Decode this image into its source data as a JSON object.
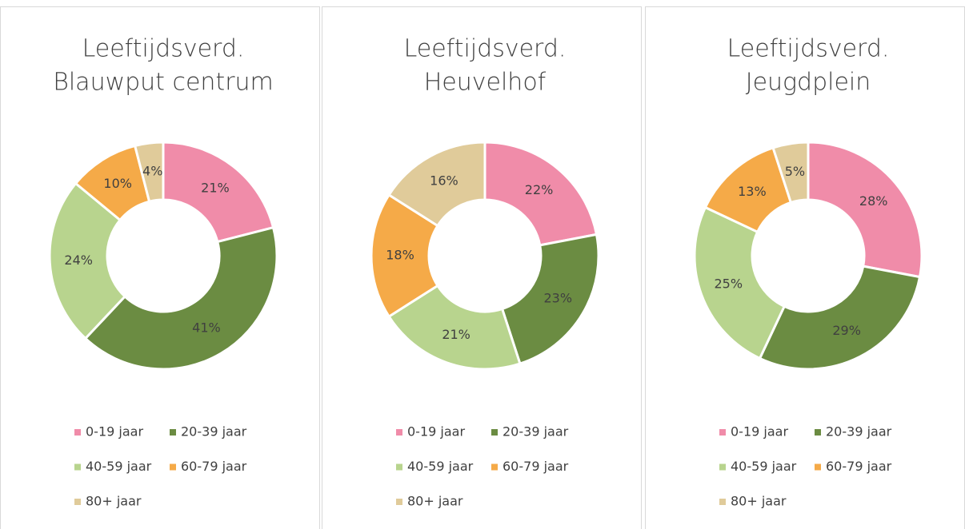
{
  "chart_data": [
    {
      "type": "donut",
      "title": [
        "Leeftijdsverd.",
        "Blauwput centrum"
      ],
      "categories": [
        "0-19 jaar",
        "20-39 jaar",
        "40-59 jaar",
        "60-79 jaar",
        "80+ jaar"
      ],
      "values": [
        21,
        41,
        24,
        10,
        4
      ],
      "value_labels": [
        "21%",
        "41%",
        "24%",
        "10%",
        "4%"
      ],
      "colors": [
        "#f08ca9",
        "#6b8c42",
        "#b8d48e",
        "#f5aa48",
        "#e0cb9a"
      ]
    },
    {
      "type": "donut",
      "title": [
        "Leeftijdsverd.",
        "Heuvelhof"
      ],
      "categories": [
        "0-19 jaar",
        "20-39 jaar",
        "40-59 jaar",
        "60-79 jaar",
        "80+ jaar"
      ],
      "values": [
        22,
        23,
        21,
        18,
        16
      ],
      "value_labels": [
        "22%",
        "23%",
        "21%",
        "18%",
        "16%"
      ],
      "colors": [
        "#f08ca9",
        "#6b8c42",
        "#b8d48e",
        "#f5aa48",
        "#e0cb9a"
      ]
    },
    {
      "type": "donut",
      "title": [
        "Leeftijdsverd.",
        "Jeugdplein"
      ],
      "categories": [
        "0-19 jaar",
        "20-39 jaar",
        "40-59 jaar",
        "60-79 jaar",
        "80+ jaar"
      ],
      "values": [
        28,
        29,
        25,
        13,
        5
      ],
      "value_labels": [
        "28%",
        "29%",
        "25%",
        "13%",
        "5%"
      ],
      "colors": [
        "#f08ca9",
        "#6b8c42",
        "#b8d48e",
        "#f5aa48",
        "#e0cb9a"
      ]
    }
  ]
}
